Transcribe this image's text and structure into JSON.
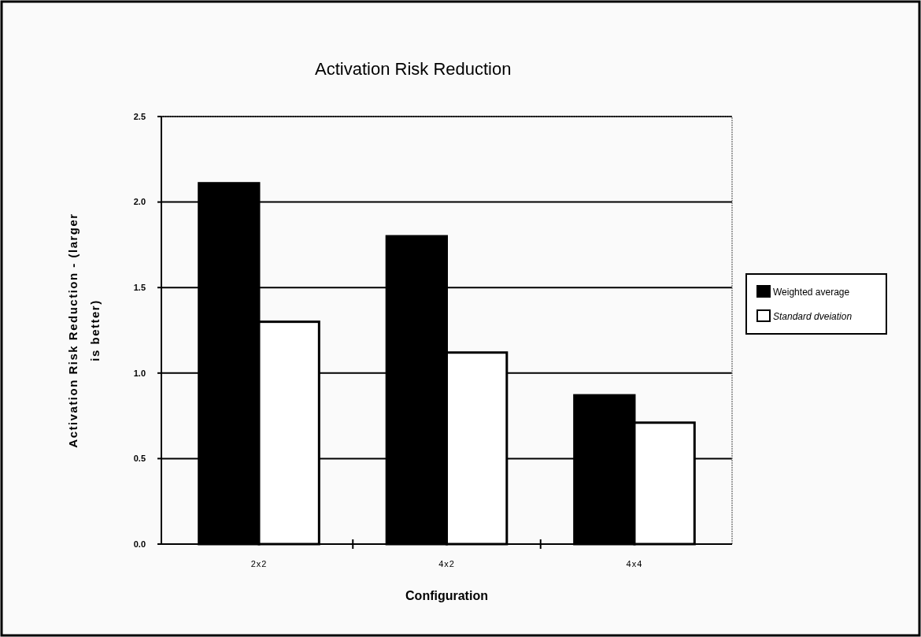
{
  "chart_data": {
    "type": "bar",
    "title": "Activation Risk Reduction",
    "xlabel": "Configuration",
    "ylabel": "Activation Risk Reduction - (larger is better)",
    "categories": [
      "2x2",
      "4x2",
      "4x4"
    ],
    "series": [
      {
        "name": "Weighted average",
        "color": "#000000",
        "values": [
          2.11,
          1.8,
          0.87
        ]
      },
      {
        "name": "Standard dveiation",
        "color": "#ffffff",
        "values": [
          1.3,
          1.12,
          0.71
        ]
      }
    ],
    "ylim": [
      0,
      2.5
    ],
    "yticks": [
      {
        "value": 0,
        "label": "0.0"
      },
      {
        "value": 0.5,
        "label": "0.5"
      },
      {
        "value": 1,
        "label": "1.0"
      },
      {
        "value": 1.5,
        "label": "1.5"
      },
      {
        "value": 2,
        "label": "2.0"
      },
      {
        "value": 2.5,
        "label": "2.5"
      }
    ],
    "grid": "y",
    "legend": "right"
  }
}
